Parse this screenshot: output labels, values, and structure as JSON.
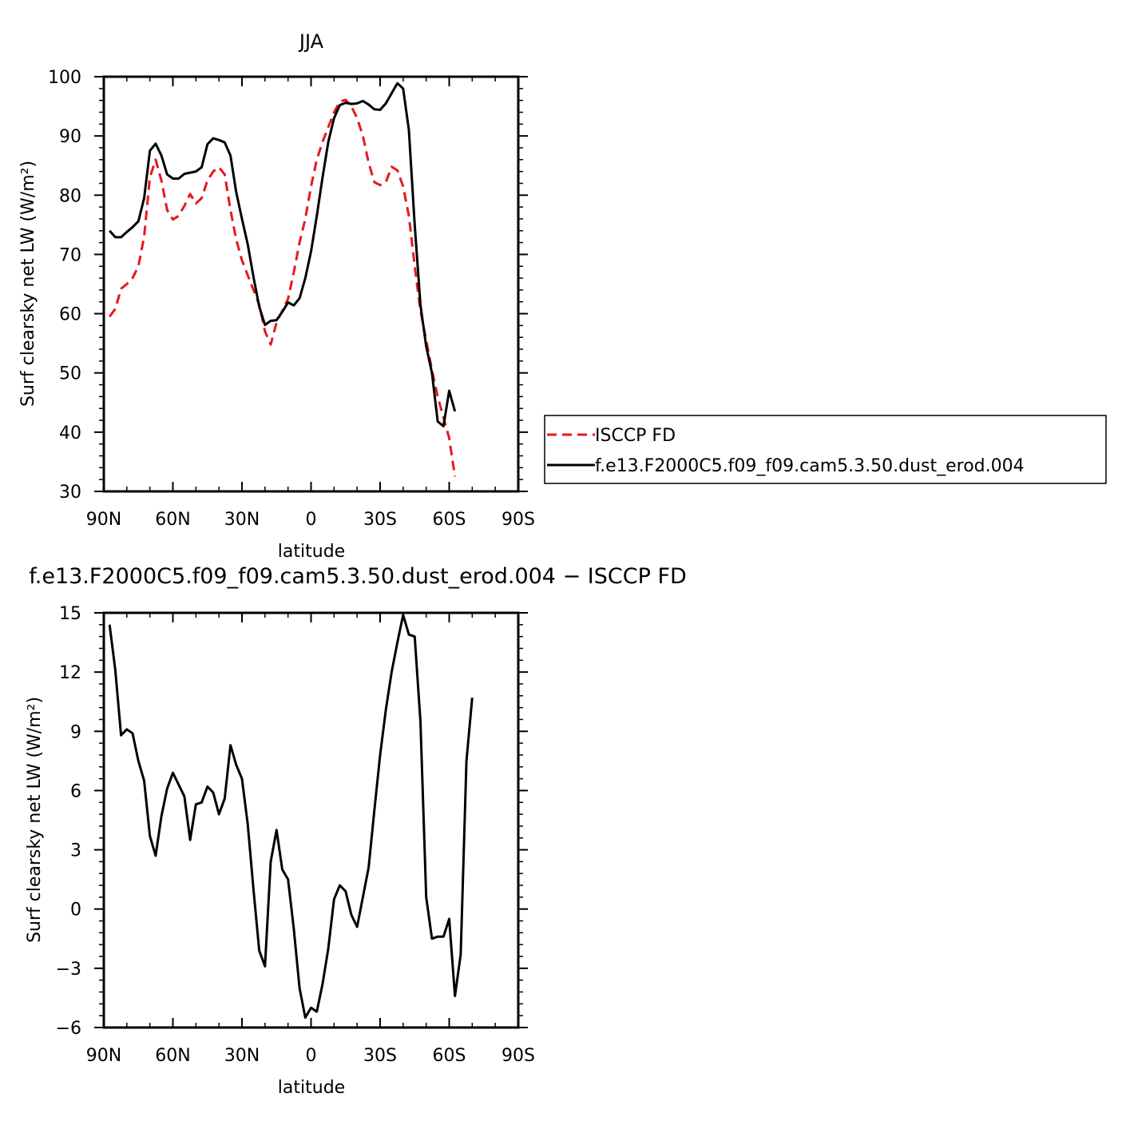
{
  "chart_data": [
    {
      "type": "line",
      "title": "JJA",
      "xlabel": "latitude",
      "ylabel": "Surf clearsky net LW (W/m²)",
      "xlim": [
        90,
        -90
      ],
      "ylim": [
        30,
        100
      ],
      "x_ticks": [
        90,
        60,
        30,
        0,
        -30,
        -60,
        -90
      ],
      "x_tick_labels": [
        "90N",
        "60N",
        "30N",
        "0",
        "30S",
        "60S",
        "90S"
      ],
      "y_ticks": [
        30,
        40,
        50,
        60,
        70,
        80,
        90,
        100
      ],
      "y_tick_labels": [
        "30",
        "40",
        "50",
        "60",
        "70",
        "80",
        "90",
        "100"
      ],
      "grid": false,
      "legend_position": "right",
      "series": [
        {
          "name": "ISCCP FD",
          "color": "#e41a1c",
          "style": "dashed",
          "points": [
            [
              87.5,
              59.5
            ],
            [
              85.0,
              60.8
            ],
            [
              82.5,
              64.2
            ],
            [
              80.0,
              65.0
            ],
            [
              77.5,
              66.0
            ],
            [
              75.0,
              68.0
            ],
            [
              72.5,
              73.0
            ],
            [
              70.0,
              83.0
            ],
            [
              67.5,
              86.0
            ],
            [
              65.0,
              82.5
            ],
            [
              62.5,
              77.5
            ],
            [
              60.0,
              75.9
            ],
            [
              57.5,
              76.5
            ],
            [
              55.0,
              78.2
            ],
            [
              52.5,
              80.2
            ],
            [
              50.0,
              78.6
            ],
            [
              47.5,
              79.5
            ],
            [
              45.0,
              82.5
            ],
            [
              42.5,
              84.0
            ],
            [
              40.0,
              84.7
            ],
            [
              37.5,
              83.5
            ],
            [
              35.0,
              77.5
            ],
            [
              32.5,
              72.5
            ],
            [
              30.0,
              69.0
            ],
            [
              27.5,
              66.5
            ],
            [
              25.0,
              64.0
            ],
            [
              22.5,
              61.5
            ],
            [
              20.0,
              57.0
            ],
            [
              17.5,
              54.8
            ],
            [
              15.0,
              58.5
            ],
            [
              12.5,
              60.5
            ],
            [
              10.0,
              62.5
            ],
            [
              7.5,
              67.0
            ],
            [
              5.0,
              72.0
            ],
            [
              2.5,
              76.0
            ],
            [
              0.0,
              81.5
            ],
            [
              -2.5,
              86.0
            ],
            [
              -5.0,
              89.0
            ],
            [
              -7.5,
              91.5
            ],
            [
              -10.0,
              94.0
            ],
            [
              -12.5,
              95.8
            ],
            [
              -15.0,
              96.1
            ],
            [
              -17.5,
              95.0
            ],
            [
              -20.0,
              93.0
            ],
            [
              -22.5,
              90.0
            ],
            [
              -25.0,
              85.5
            ],
            [
              -27.5,
              82.2
            ],
            [
              -30.0,
              81.7
            ],
            [
              -32.5,
              82.2
            ],
            [
              -35.0,
              84.8
            ],
            [
              -37.5,
              84.2
            ],
            [
              -40.0,
              81.5
            ],
            [
              -42.5,
              76.5
            ],
            [
              -45.0,
              68.0
            ],
            [
              -47.5,
              60.5
            ],
            [
              -50.0,
              55.5
            ],
            [
              -52.5,
              50.5
            ],
            [
              -55.0,
              46.0
            ],
            [
              -57.5,
              42.5
            ],
            [
              -60.0,
              39.0
            ],
            [
              -62.5,
              32.5
            ]
          ]
        },
        {
          "name": "f.e13.F2000C5.f09_f09.cam5.3.50.dust_erod.004",
          "color": "#000000",
          "style": "solid",
          "points": [
            [
              87.5,
              74.0
            ],
            [
              85.0,
              72.9
            ],
            [
              82.5,
              72.9
            ],
            [
              80.0,
              73.8
            ],
            [
              77.5,
              74.6
            ],
            [
              75.0,
              75.6
            ],
            [
              72.5,
              79.5
            ],
            [
              70.0,
              87.5
            ],
            [
              67.5,
              88.7
            ],
            [
              65.0,
              86.7
            ],
            [
              62.5,
              83.5
            ],
            [
              60.0,
              82.8
            ],
            [
              57.5,
              82.8
            ],
            [
              55.0,
              83.6
            ],
            [
              52.5,
              83.8
            ],
            [
              50.0,
              84.0
            ],
            [
              47.5,
              84.7
            ],
            [
              45.0,
              88.6
            ],
            [
              42.5,
              89.6
            ],
            [
              40.0,
              89.3
            ],
            [
              37.5,
              88.9
            ],
            [
              35.0,
              86.7
            ],
            [
              32.5,
              80.5
            ],
            [
              30.0,
              76.0
            ],
            [
              27.5,
              71.7
            ],
            [
              25.0,
              66.2
            ],
            [
              22.5,
              61.2
            ],
            [
              20.0,
              58.1
            ],
            [
              17.5,
              58.8
            ],
            [
              15.0,
              58.9
            ],
            [
              12.5,
              60.3
            ],
            [
              10.0,
              61.9
            ],
            [
              7.5,
              61.4
            ],
            [
              5.0,
              62.6
            ],
            [
              2.5,
              66.0
            ],
            [
              0.0,
              70.5
            ],
            [
              -2.5,
              76.5
            ],
            [
              -5.0,
              83.0
            ],
            [
              -7.5,
              89.0
            ],
            [
              -10.0,
              93.0
            ],
            [
              -12.5,
              95.2
            ],
            [
              -15.0,
              95.6
            ],
            [
              -17.5,
              95.4
            ],
            [
              -20.0,
              95.5
            ],
            [
              -22.5,
              95.9
            ],
            [
              -25.0,
              95.3
            ],
            [
              -27.5,
              94.5
            ],
            [
              -30.0,
              94.4
            ],
            [
              -32.5,
              95.5
            ],
            [
              -35.0,
              97.2
            ],
            [
              -37.5,
              98.9
            ],
            [
              -40.0,
              98.0
            ],
            [
              -42.5,
              91.0
            ],
            [
              -45.0,
              75.0
            ],
            [
              -47.5,
              61.5
            ],
            [
              -50.0,
              54.5
            ],
            [
              -52.5,
              50.0
            ],
            [
              -55.0,
              41.8
            ],
            [
              -57.5,
              41.0
            ],
            [
              -60.0,
              47.0
            ],
            [
              -62.5,
              43.5
            ]
          ]
        }
      ]
    },
    {
      "type": "line",
      "title": "f.e13.F2000C5.f09_f09.cam5.3.50.dust_erod.004 − ISCCP FD",
      "xlabel": "latitude",
      "ylabel": "Surf clearsky net LW (W/m²)",
      "xlim": [
        90,
        -90
      ],
      "ylim": [
        -6,
        15
      ],
      "x_ticks": [
        90,
        60,
        30,
        0,
        -30,
        -60,
        -90
      ],
      "x_tick_labels": [
        "90N",
        "60N",
        "30N",
        "0",
        "30S",
        "60S",
        "90S"
      ],
      "y_ticks": [
        -6,
        -3,
        0,
        3,
        6,
        9,
        12,
        15
      ],
      "y_tick_labels": [
        "−6",
        "−3",
        "0",
        "3",
        "6",
        "9",
        "12",
        "15"
      ],
      "grid": false,
      "series": [
        {
          "color": "#000000",
          "style": "solid",
          "points": [
            [
              87.5,
              14.4
            ],
            [
              85.0,
              12.1
            ],
            [
              82.5,
              8.8
            ],
            [
              80.0,
              9.1
            ],
            [
              77.5,
              8.9
            ],
            [
              75.0,
              7.5
            ],
            [
              72.5,
              6.5
            ],
            [
              70.0,
              3.7
            ],
            [
              67.5,
              2.7
            ],
            [
              65.0,
              4.7
            ],
            [
              62.5,
              6.1
            ],
            [
              60.0,
              6.9
            ],
            [
              57.5,
              6.3
            ],
            [
              55.0,
              5.7
            ],
            [
              52.5,
              3.5
            ],
            [
              50.0,
              5.3
            ],
            [
              47.5,
              5.4
            ],
            [
              45.0,
              6.2
            ],
            [
              42.5,
              5.9
            ],
            [
              40.0,
              4.8
            ],
            [
              37.5,
              5.6
            ],
            [
              35.0,
              8.3
            ],
            [
              32.5,
              7.3
            ],
            [
              30.0,
              6.6
            ],
            [
              27.5,
              4.3
            ],
            [
              25.0,
              1.0
            ],
            [
              22.5,
              -2.1
            ],
            [
              20.0,
              -2.9
            ],
            [
              17.5,
              2.4
            ],
            [
              15.0,
              4.0
            ],
            [
              12.5,
              2.0
            ],
            [
              10.0,
              1.5
            ],
            [
              7.5,
              -1.0
            ],
            [
              5.0,
              -4.0
            ],
            [
              2.5,
              -5.5
            ],
            [
              0.0,
              -5.0
            ],
            [
              -2.5,
              -5.2
            ],
            [
              -5.0,
              -3.8
            ],
            [
              -7.5,
              -2.0
            ],
            [
              -10.0,
              0.5
            ],
            [
              -12.5,
              1.2
            ],
            [
              -15.0,
              0.9
            ],
            [
              -17.5,
              -0.3
            ],
            [
              -20.0,
              -0.9
            ],
            [
              -22.5,
              0.6
            ],
            [
              -25.0,
              2.1
            ],
            [
              -27.5,
              5.0
            ],
            [
              -30.0,
              7.8
            ],
            [
              -32.5,
              10.1
            ],
            [
              -35.0,
              12.0
            ],
            [
              -37.5,
              13.5
            ],
            [
              -40.0,
              14.9
            ],
            [
              -42.5,
              13.9
            ],
            [
              -45.0,
              13.8
            ],
            [
              -47.5,
              9.5
            ],
            [
              -50.0,
              0.6
            ],
            [
              -52.5,
              -1.5
            ],
            [
              -55.0,
              -1.4
            ],
            [
              -57.5,
              -1.4
            ],
            [
              -60.0,
              -0.5
            ],
            [
              -62.5,
              -4.4
            ],
            [
              -65.0,
              -2.3
            ],
            [
              -67.5,
              7.5
            ],
            [
              -70.0,
              10.7
            ]
          ]
        }
      ]
    }
  ]
}
